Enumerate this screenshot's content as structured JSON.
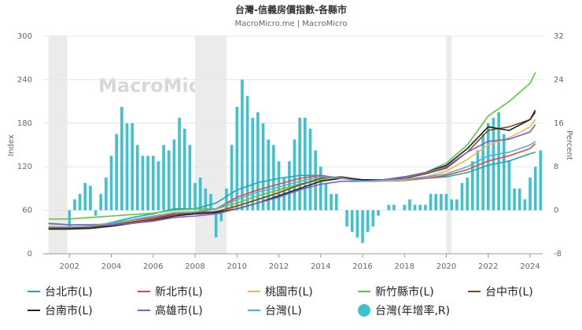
{
  "chart_data": {
    "type": "combo",
    "title": "台灣-信義房價指數-各縣市",
    "subtitle": "MacroMicro.me | MacroMicro",
    "watermark": "MacroMicro",
    "ylabel": "Index",
    "y2label": "Percent",
    "xlim": [
      2000.75,
      2024.6
    ],
    "xticks": [
      2002,
      2004,
      2006,
      2008,
      2010,
      2012,
      2014,
      2016,
      2018,
      2020,
      2022,
      2024
    ],
    "ylim": [
      0,
      300
    ],
    "yticks": [
      0,
      60,
      120,
      180,
      240,
      300
    ],
    "y2lim": [
      -8,
      32
    ],
    "y2ticks": [
      -8,
      0,
      8,
      16,
      24,
      32
    ],
    "grid": true,
    "shaded": [
      [
        2001.0,
        2001.9
      ],
      [
        2008.0,
        2009.5
      ],
      [
        2020.0,
        2020.25
      ]
    ],
    "x": [
      2001,
      2002,
      2003,
      2004,
      2005,
      2006,
      2007,
      2008,
      2009,
      2010,
      2011,
      2012,
      2013,
      2014,
      2015,
      2016,
      2017,
      2018,
      2019,
      2020,
      2021,
      2022,
      2023,
      2024,
      2024.25
    ],
    "series": [
      {
        "name": "台北市(L)",
        "type": "line",
        "color": "#1fa6b8",
        "values": [
          36,
          36,
          38,
          43,
          50,
          55,
          62,
          62,
          70,
          88,
          98,
          104,
          108,
          108,
          104,
          100,
          100,
          102,
          104,
          106,
          112,
          122,
          128,
          138,
          140
        ]
      },
      {
        "name": "新北市(L)",
        "type": "line",
        "color": "#e8483c",
        "values": [
          35,
          35,
          36,
          40,
          46,
          50,
          55,
          56,
          62,
          78,
          88,
          96,
          104,
          108,
          104,
          100,
          100,
          101,
          104,
          108,
          116,
          128,
          135,
          145,
          152
        ]
      },
      {
        "name": "桃園市(L)",
        "type": "line",
        "color": "#f5b942",
        "values": [
          40,
          40,
          40,
          42,
          45,
          48,
          52,
          55,
          56,
          65,
          75,
          85,
          95,
          102,
          104,
          101,
          100,
          102,
          106,
          114,
          130,
          150,
          160,
          175,
          185
        ]
      },
      {
        "name": "新竹縣市(L)",
        "type": "line",
        "color": "#5cc840",
        "values": [
          48,
          48,
          50,
          52,
          54,
          56,
          60,
          62,
          62,
          70,
          80,
          88,
          96,
          102,
          104,
          102,
          102,
          106,
          112,
          125,
          150,
          190,
          210,
          235,
          250
        ]
      },
      {
        "name": "台中市(L)",
        "type": "line",
        "color": "#8b4513",
        "values": [
          36,
          36,
          37,
          40,
          44,
          48,
          54,
          56,
          58,
          66,
          75,
          84,
          95,
          104,
          106,
          102,
          102,
          104,
          110,
          118,
          140,
          170,
          175,
          185,
          195
        ]
      },
      {
        "name": "台南市(L)",
        "type": "line",
        "color": "#222222",
        "values": [
          34,
          34,
          35,
          38,
          42,
          46,
          52,
          55,
          57,
          62,
          70,
          80,
          90,
          100,
          104,
          102,
          102,
          106,
          112,
          122,
          145,
          175,
          170,
          185,
          198
        ]
      },
      {
        "name": "高雄市(L)",
        "type": "line",
        "color": "#7b5cd6",
        "values": [
          42,
          40,
          40,
          40,
          42,
          45,
          50,
          52,
          55,
          62,
          70,
          78,
          88,
          96,
          100,
          100,
          102,
          106,
          112,
          120,
          140,
          155,
          158,
          168,
          178
        ]
      },
      {
        "name": "台灣(L)",
        "type": "line",
        "color": "#4ab0e0",
        "values": [
          37,
          37,
          38,
          42,
          47,
          52,
          57,
          58,
          62,
          75,
          85,
          92,
          100,
          106,
          104,
          100,
          101,
          103,
          106,
          110,
          120,
          135,
          140,
          150,
          155
        ]
      },
      {
        "name": "台灣(年增率,R)",
        "type": "bar",
        "axis": "y2",
        "color": "#3ec2cf",
        "x": [
          2002,
          2002.25,
          2002.5,
          2002.75,
          2003,
          2003.25,
          2003.5,
          2003.75,
          2004,
          2004.25,
          2004.5,
          2004.75,
          2005,
          2005.25,
          2005.5,
          2005.75,
          2006,
          2006.25,
          2006.5,
          2006.75,
          2007,
          2007.25,
          2007.5,
          2007.75,
          2008,
          2008.25,
          2008.5,
          2008.75,
          2009,
          2009.25,
          2009.5,
          2009.75,
          2010,
          2010.25,
          2010.5,
          2010.75,
          2011,
          2011.25,
          2011.5,
          2011.75,
          2012,
          2012.25,
          2012.5,
          2012.75,
          2013,
          2013.25,
          2013.5,
          2013.75,
          2014,
          2014.25,
          2014.5,
          2014.75,
          2015,
          2015.25,
          2015.5,
          2015.75,
          2016,
          2016.25,
          2016.5,
          2016.75,
          2017,
          2017.25,
          2017.5,
          2017.75,
          2018,
          2018.25,
          2018.5,
          2018.75,
          2019,
          2019.25,
          2019.5,
          2019.75,
          2020,
          2020.25,
          2020.5,
          2020.75,
          2021,
          2021.25,
          2021.5,
          2021.75,
          2022,
          2022.25,
          2022.5,
          2022.75,
          2023,
          2023.25,
          2023.5,
          2023.75,
          2024,
          2024.25,
          2024.5
        ],
        "values": [
          -3,
          2,
          3,
          5,
          4.5,
          -1,
          3,
          6,
          10,
          14,
          19,
          16,
          16,
          12,
          10,
          10,
          10,
          9,
          12,
          11,
          13,
          17,
          15,
          12,
          5,
          6,
          4,
          3,
          -5,
          -2,
          4,
          12,
          19,
          24,
          21,
          17,
          18,
          16,
          13,
          12,
          9,
          6,
          9,
          13,
          17,
          17,
          15,
          11,
          8,
          5,
          3,
          3,
          0,
          -3,
          -4,
          -5,
          -6,
          -4,
          -3,
          -1,
          0,
          1,
          1,
          0,
          1,
          2,
          1,
          1,
          1,
          3,
          3,
          3,
          3,
          2,
          2,
          5,
          6,
          9,
          11,
          14,
          16,
          17,
          18,
          14,
          9,
          4,
          4,
          2,
          6,
          8,
          11
        ]
      }
    ]
  }
}
